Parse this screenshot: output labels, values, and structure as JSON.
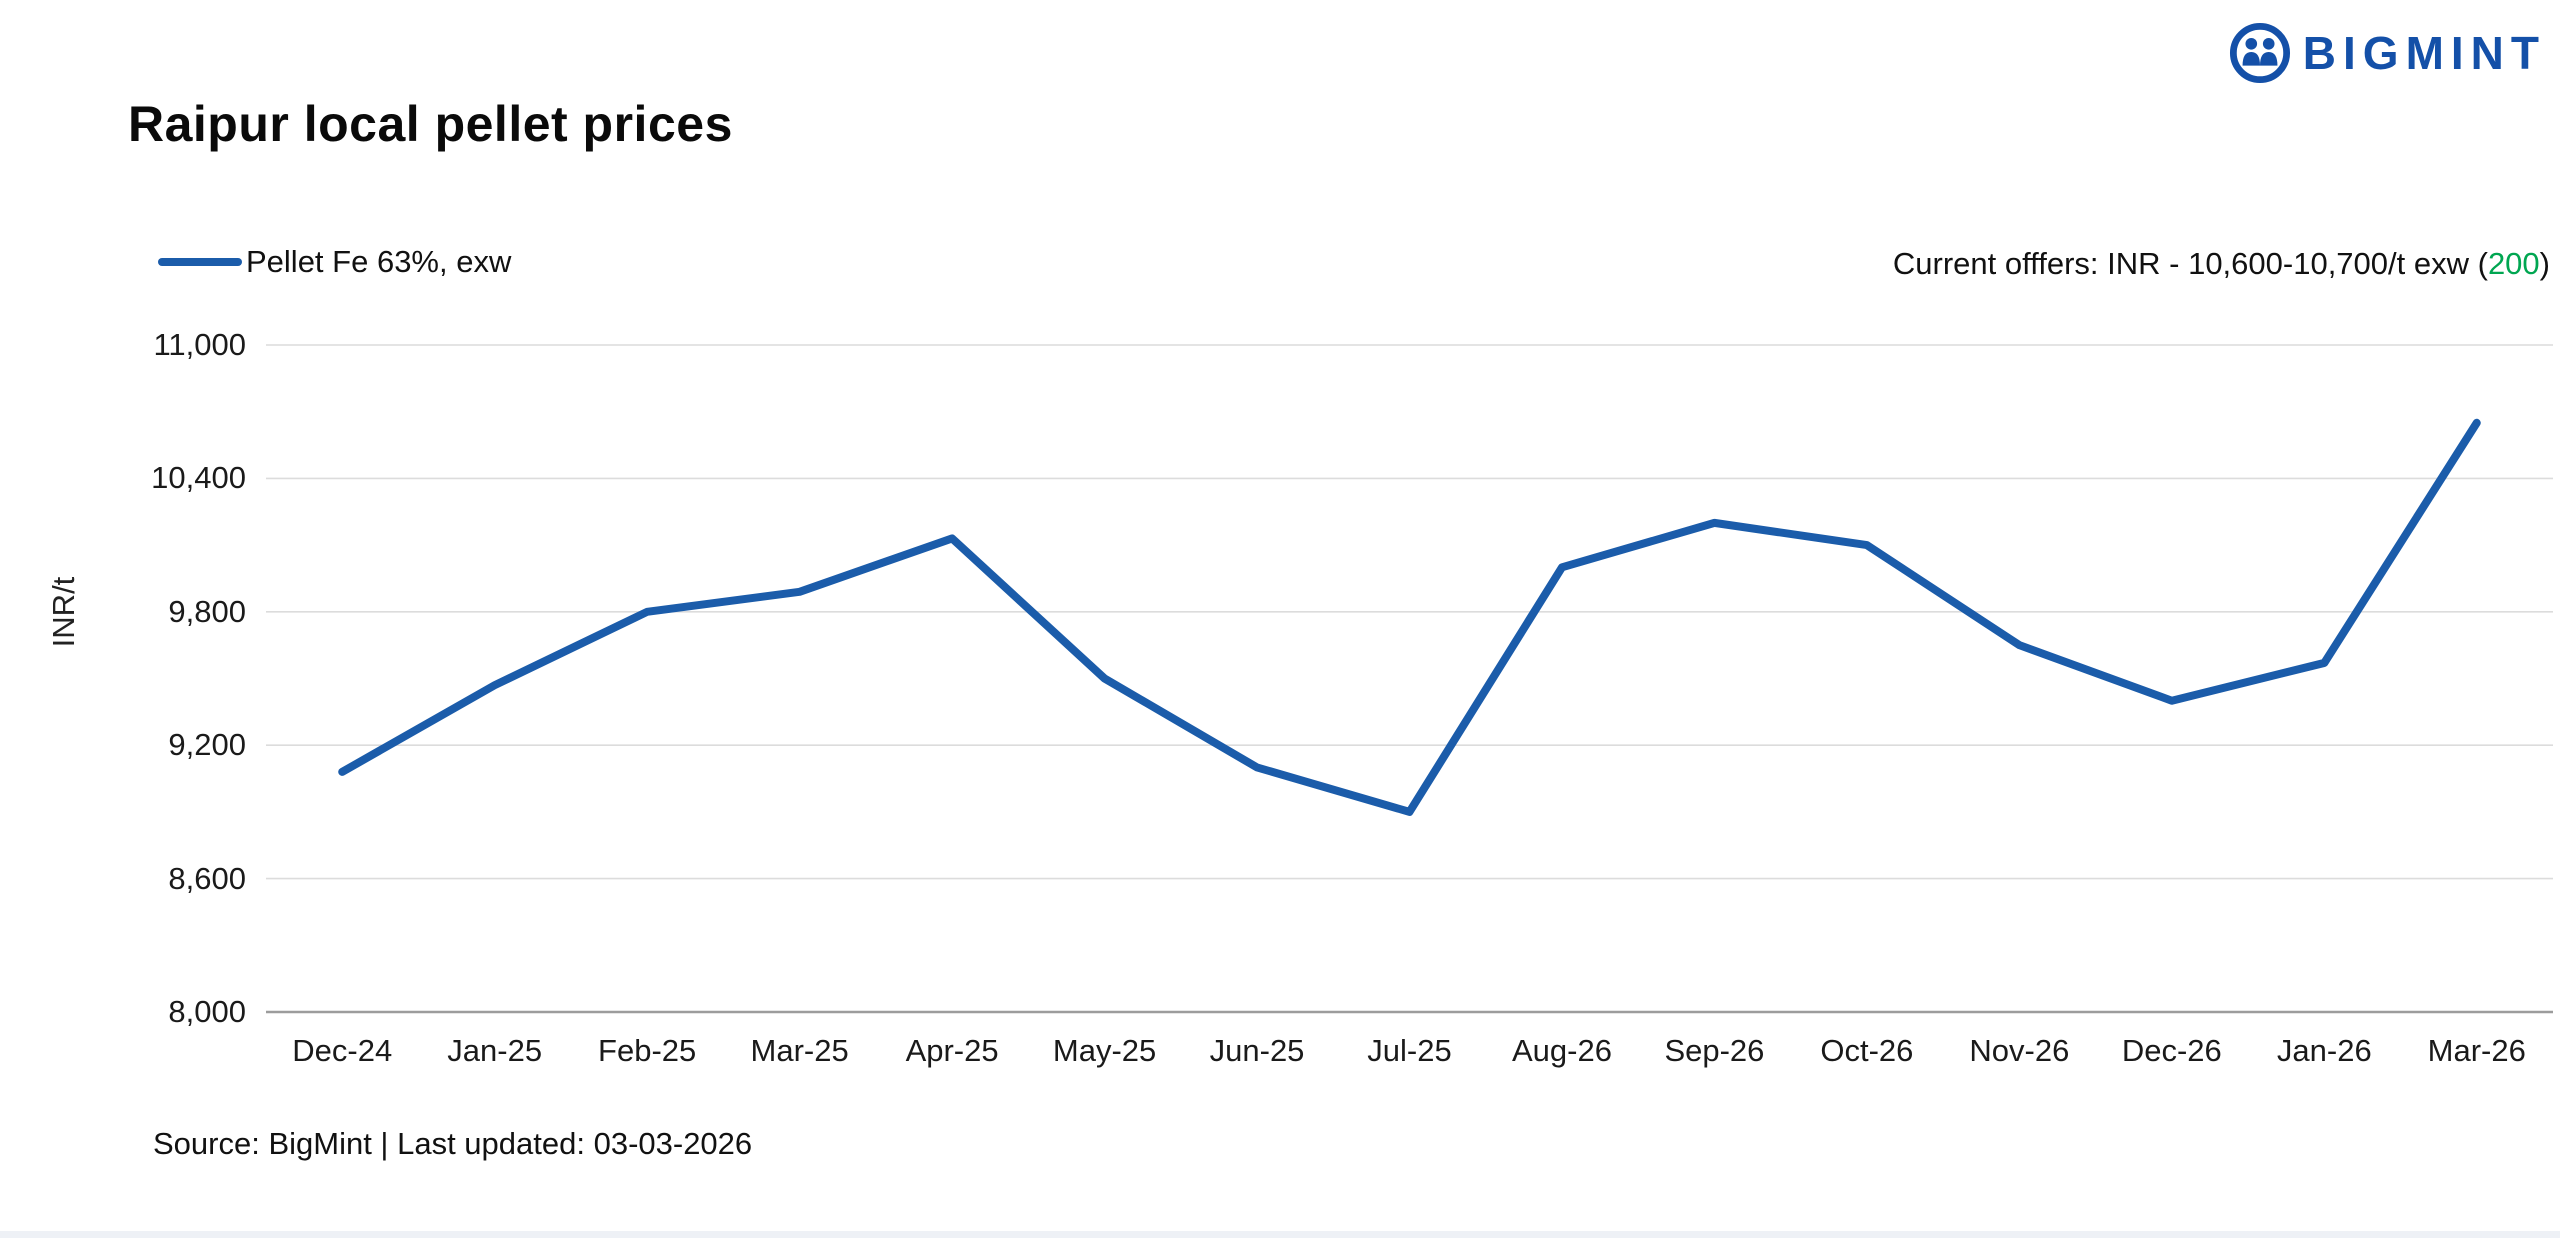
{
  "brand": {
    "name": "BIGMINT",
    "color": "#1450A8"
  },
  "title": "Raipur local pellet prices",
  "legend": {
    "series_label": "Pellet Fe 63%, exw"
  },
  "offers": {
    "prefix": "Current offfers: INR - 10,600-10,700/t exw (",
    "change": "200",
    "suffix": ")",
    "change_color": "#00A651"
  },
  "source": "Source: BigMint | Last updated: 03-03-2026",
  "chart_data": {
    "type": "line",
    "title": "Raipur local pellet prices",
    "xlabel": "",
    "ylabel": "INR/t",
    "ylim": [
      8000,
      11000
    ],
    "ytick_step": 600,
    "yticks": [
      8000,
      8600,
      9200,
      9800,
      10400,
      11000
    ],
    "grid": true,
    "legend_position": "top-left",
    "categories": [
      "Dec-24",
      "Jan-25",
      "Feb-25",
      "Mar-25",
      "Apr-25",
      "May-25",
      "Jun-25",
      "Jul-25",
      "Aug-26",
      "Sep-26",
      "Oct-26",
      "Nov-26",
      "Dec-26",
      "Jan-26",
      "Mar-26"
    ],
    "series": [
      {
        "name": "Pellet Fe 63%, exw",
        "color": "#1B5CAA",
        "values": [
          9080,
          9470,
          9800,
          9890,
          10130,
          9500,
          9100,
          8900,
          10000,
          10200,
          10100,
          9650,
          9400,
          9570,
          10650
        ]
      }
    ]
  }
}
